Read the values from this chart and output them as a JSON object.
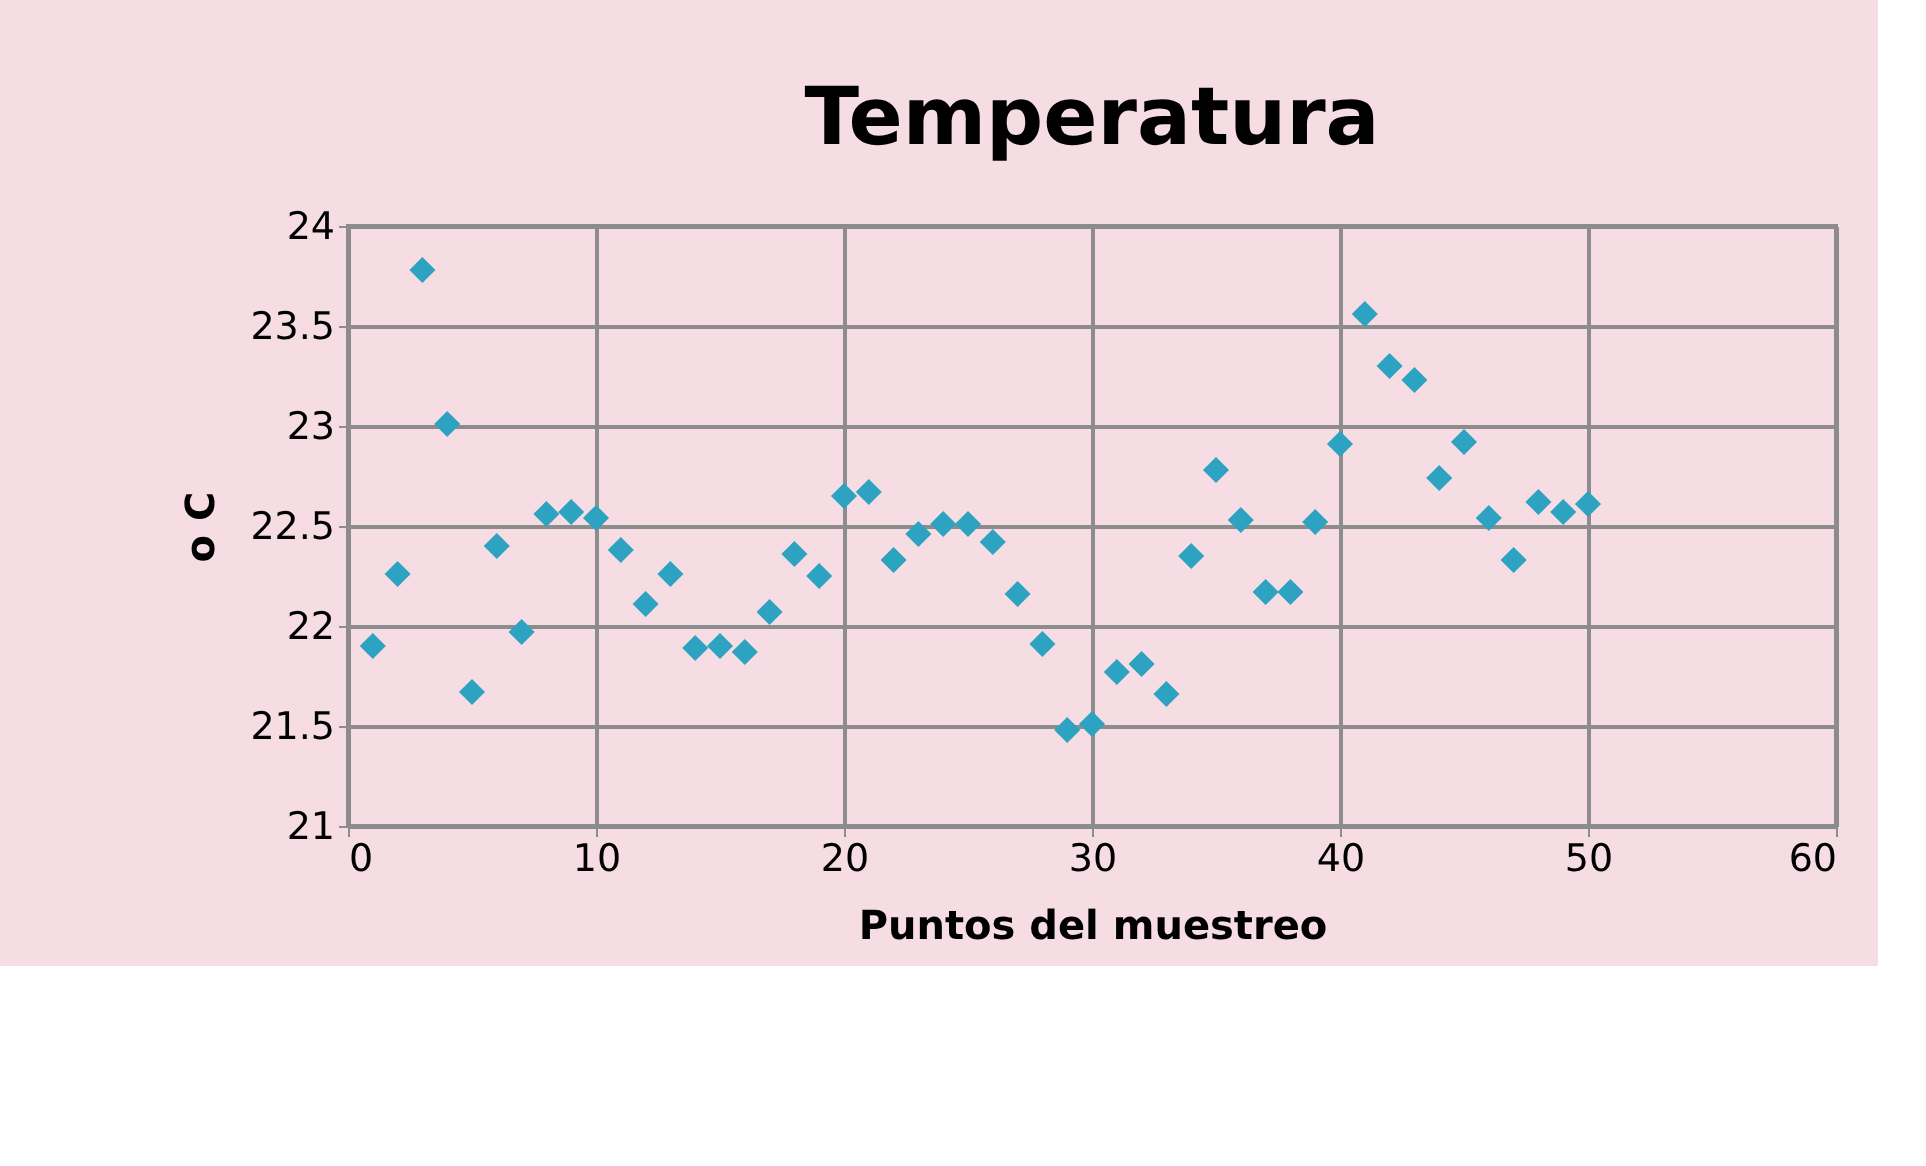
{
  "chart_data": {
    "type": "scatter",
    "title": "Temperatura",
    "xlabel": "Puntos del muestreo",
    "ylabel": "o C",
    "x": [
      1,
      2,
      3,
      4,
      5,
      6,
      7,
      8,
      9,
      10,
      11,
      12,
      13,
      14,
      15,
      16,
      17,
      18,
      19,
      20,
      21,
      22,
      23,
      24,
      25,
      26,
      27,
      28,
      29,
      30,
      31,
      32,
      33,
      34,
      35,
      36,
      37,
      38,
      39,
      40,
      41,
      42,
      43,
      44,
      45,
      46,
      47,
      48,
      49,
      50
    ],
    "series": [
      {
        "color": "#2ea3c1",
        "values": [
          21.9,
          22.26,
          23.78,
          23.01,
          21.67,
          22.4,
          21.97,
          22.56,
          22.57,
          22.54,
          22.38,
          22.11,
          22.26,
          21.89,
          21.9,
          21.87,
          22.07,
          22.36,
          22.25,
          22.65,
          22.67,
          22.33,
          22.46,
          22.51,
          22.51,
          22.42,
          22.16,
          21.91,
          21.48,
          21.51,
          21.77,
          21.81,
          21.66,
          22.35,
          22.78,
          22.53,
          22.17,
          22.17,
          22.52,
          22.91,
          23.56,
          23.3,
          23.23,
          22.74,
          22.92,
          22.54,
          22.33,
          22.62,
          22.57,
          22.61
        ]
      }
    ],
    "xlim": [
      0,
      60
    ],
    "xticks": [
      0,
      10,
      20,
      30,
      40,
      50,
      60
    ],
    "ylim": [
      21,
      24
    ],
    "yticks": [
      21,
      21.5,
      22,
      22.5,
      23,
      23.5,
      24
    ],
    "grid": true,
    "marker": "diamond",
    "legend": false
  }
}
